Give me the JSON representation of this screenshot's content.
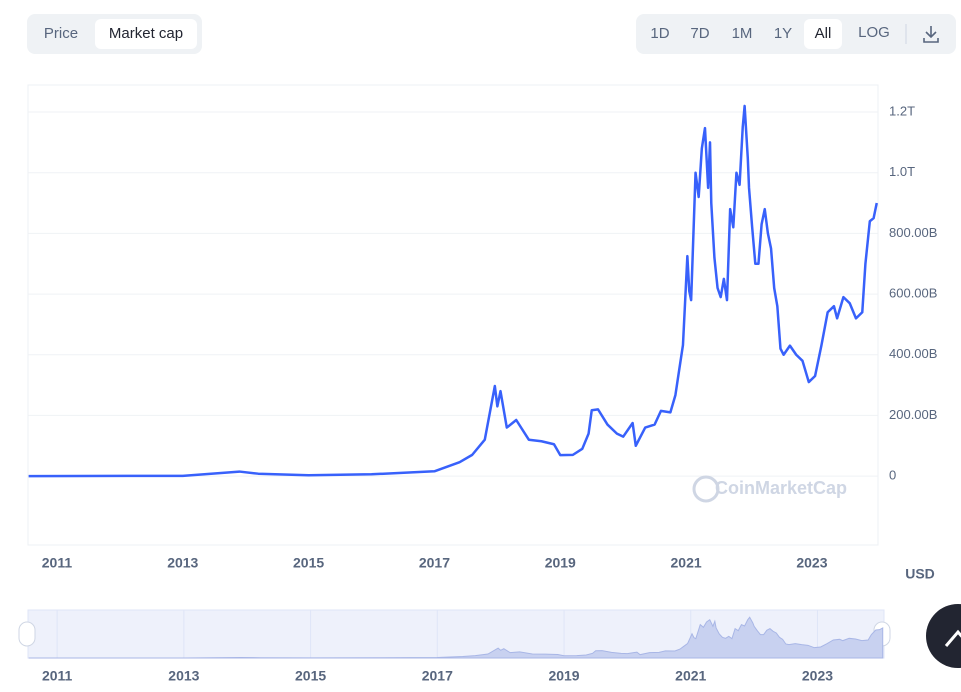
{
  "ui": {
    "tabs": [
      "Price",
      "Market cap"
    ],
    "ranges": [
      "1D",
      "7D",
      "1M",
      "1Y",
      "All"
    ],
    "log": "LOG",
    "currency": "USD",
    "watermark": "CoinMarketCap"
  },
  "chart_data": {
    "type": "line",
    "color": "#3861fb",
    "grid": true,
    "xlim": [
      2010.54,
      2024.05
    ],
    "xticks": [
      2011,
      2013,
      2015,
      2017,
      2019,
      2021,
      2023
    ],
    "ylim": [
      -227,
      1289
    ],
    "yticks": [
      0,
      {
        "value": 200,
        "label": "200.00B"
      },
      {
        "value": 400,
        "label": "400.00B"
      },
      {
        "value": 600,
        "label": "600.00B"
      },
      {
        "value": 800,
        "label": "800.00B"
      },
      {
        "value": 1000,
        "label": "1.0T"
      },
      {
        "value": 1200,
        "label": "1.2T"
      }
    ],
    "x": [
      2010.55,
      2013.0,
      2013.9,
      2014.2,
      2015.0,
      2016.0,
      2017.0,
      2017.4,
      2017.6,
      2017.8,
      2017.96,
      2018.0,
      2018.05,
      2018.15,
      2018.3,
      2018.5,
      2018.7,
      2018.9,
      2019.0,
      2019.2,
      2019.35,
      2019.45,
      2019.5,
      2019.6,
      2019.75,
      2019.9,
      2020.0,
      2020.15,
      2020.2,
      2020.35,
      2020.5,
      2020.6,
      2020.75,
      2020.83,
      2020.89,
      2020.95,
      2021.02,
      2021.05,
      2021.08,
      2021.15,
      2021.2,
      2021.25,
      2021.3,
      2021.35,
      2021.38,
      2021.4,
      2021.45,
      2021.5,
      2021.55,
      2021.6,
      2021.65,
      2021.7,
      2021.75,
      2021.8,
      2021.85,
      2021.9,
      2021.93,
      2021.98,
      2022.0,
      2022.05,
      2022.1,
      2022.15,
      2022.2,
      2022.25,
      2022.3,
      2022.35,
      2022.4,
      2022.45,
      2022.5,
      2022.55,
      2022.65,
      2022.75,
      2022.85,
      2022.95,
      2023.05,
      2023.15,
      2023.25,
      2023.35,
      2023.4,
      2023.5,
      2023.6,
      2023.7,
      2023.8,
      2023.85,
      2023.92,
      2023.98,
      2024.03
    ],
    "series": [
      {
        "name": "Market cap",
        "values": [
          0,
          1,
          15,
          8,
          3,
          6,
          16,
          46,
          70,
          120,
          297,
          230,
          280,
          160,
          185,
          120,
          115,
          105,
          69,
          70,
          90,
          140,
          217,
          220,
          170,
          140,
          130,
          175,
          100,
          160,
          170,
          215,
          210,
          267,
          350,
          432,
          725,
          610,
          580,
          1000,
          920,
          1080,
          1147,
          950,
          1100,
          900,
          720,
          620,
          590,
          650,
          580,
          880,
          820,
          1000,
          960,
          1150,
          1220,
          1050,
          950,
          820,
          700,
          700,
          830,
          880,
          800,
          750,
          620,
          560,
          420,
          400,
          430,
          400,
          380,
          310,
          330,
          430,
          540,
          560,
          520,
          590,
          570,
          520,
          540,
          700,
          840,
          850,
          900
        ]
      }
    ]
  }
}
